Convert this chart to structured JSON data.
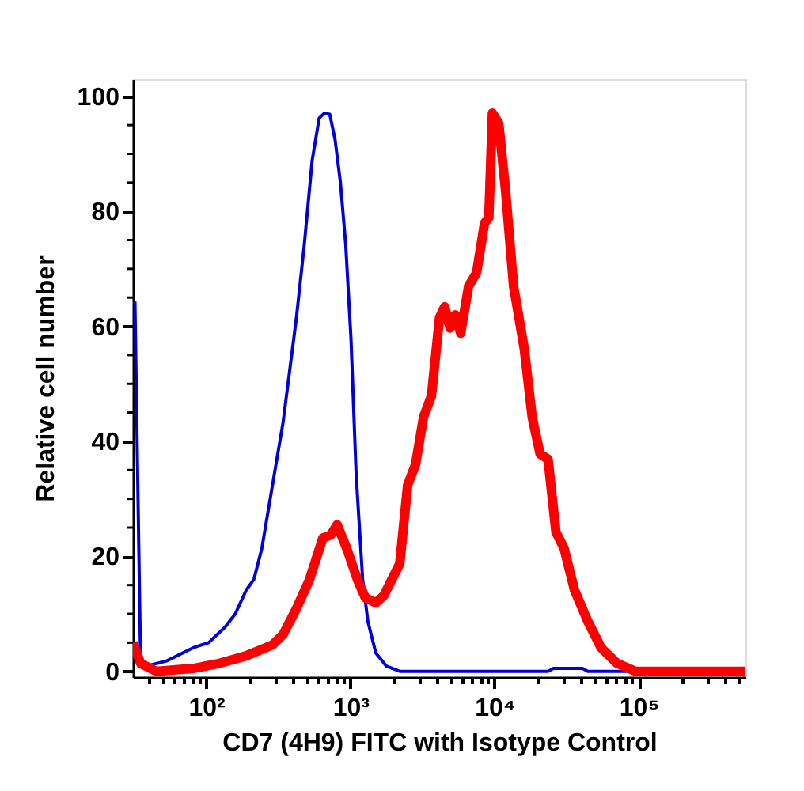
{
  "chart_data": {
    "type": "line",
    "xlabel": "CD7 (4H9) FITC with Isotype Control",
    "ylabel": "Relative cell number",
    "log": "x",
    "legend": false,
    "grid": false,
    "marker": "none",
    "line_style": "solid",
    "xlim": [
      31,
      550000
    ],
    "ylim": [
      -1,
      103
    ],
    "xticks": [
      {
        "value": 100,
        "label": "10²"
      },
      {
        "value": 1000,
        "label": "10³"
      },
      {
        "value": 10000,
        "label": "10⁴"
      },
      {
        "value": 100000,
        "label": "10⁵"
      },
      {
        "value": 40,
        "label": null
      },
      {
        "value": 50,
        "label": null
      },
      {
        "value": 60,
        "label": null
      },
      {
        "value": 70,
        "label": null
      },
      {
        "value": 80,
        "label": null
      },
      {
        "value": 90,
        "label": null
      },
      {
        "value": 200,
        "label": null
      },
      {
        "value": 300,
        "label": null
      },
      {
        "value": 400,
        "label": null
      },
      {
        "value": 500,
        "label": null
      },
      {
        "value": 600,
        "label": null
      },
      {
        "value": 700,
        "label": null
      },
      {
        "value": 800,
        "label": null
      },
      {
        "value": 900,
        "label": null
      },
      {
        "value": 2000,
        "label": null
      },
      {
        "value": 3000,
        "label": null
      },
      {
        "value": 4000,
        "label": null
      },
      {
        "value": 5000,
        "label": null
      },
      {
        "value": 6000,
        "label": null
      },
      {
        "value": 7000,
        "label": null
      },
      {
        "value": 8000,
        "label": null
      },
      {
        "value": 9000,
        "label": null
      },
      {
        "value": 20000,
        "label": null
      },
      {
        "value": 30000,
        "label": null
      },
      {
        "value": 40000,
        "label": null
      },
      {
        "value": 50000,
        "label": null
      },
      {
        "value": 60000,
        "label": null
      },
      {
        "value": 70000,
        "label": null
      },
      {
        "value": 80000,
        "label": null
      },
      {
        "value": 90000,
        "label": null
      },
      {
        "value": 200000,
        "label": null
      },
      {
        "value": 300000,
        "label": null
      },
      {
        "value": 400000,
        "label": null
      },
      {
        "value": 500000,
        "label": null
      }
    ],
    "yticks": [
      0,
      20,
      40,
      60,
      80,
      100,
      {
        "value": 5,
        "label": null
      },
      {
        "value": 10,
        "label": null
      },
      {
        "value": 15,
        "label": null
      },
      {
        "value": 25,
        "label": null
      },
      {
        "value": 30,
        "label": null
      },
      {
        "value": 35,
        "label": null
      },
      {
        "value": 45,
        "label": null
      },
      {
        "value": 50,
        "label": null
      },
      {
        "value": 55,
        "label": null
      },
      {
        "value": 65,
        "label": null
      },
      {
        "value": 70,
        "label": null
      },
      {
        "value": 75,
        "label": null
      },
      {
        "value": 85,
        "label": null
      },
      {
        "value": 90,
        "label": null
      },
      {
        "value": 95,
        "label": null
      }
    ],
    "series": [
      {
        "color": "#0000dd",
        "x": [
          32,
          35,
          38,
          53,
          81,
          104,
          135,
          159,
          189,
          214,
          243,
          288,
          341,
          422,
          479,
          543,
          607,
          661,
          719,
          782,
          851,
          927,
          1009,
          1096,
          1216,
          1321,
          1500,
          1778,
          2198,
          23440,
          25590,
          40740,
          44360,
          550000
        ],
        "values": [
          64.3,
          2.3,
          0.9,
          1.8,
          4.1,
          5.0,
          7.7,
          10.0,
          14.1,
          16.0,
          21.4,
          32.4,
          43.3,
          61.5,
          74.3,
          88.9,
          96.2,
          97.1,
          96.9,
          92.5,
          85.2,
          74.3,
          57.9,
          34.2,
          16.0,
          8.7,
          3.2,
          0.9,
          0,
          0,
          0.5,
          0.5,
          0,
          0
        ]
      },
      {
        "color": "#ff0000",
        "x": [
          31,
          35,
          45,
          81,
          124,
          189,
          288,
          341,
          422,
          521,
          644,
          731,
          809,
          942,
          1117,
          1268,
          1500,
          1706,
          2198,
          2495,
          2831,
          3214,
          3648,
          4150,
          4508,
          4909,
          5346,
          5821,
          6607,
          7499,
          8511,
          9120,
          9661,
          10690,
          11940,
          13550,
          16070,
          18240,
          20700,
          23500,
          26670,
          30340,
          35890,
          44360,
          54830,
          70630,
          95060,
          550000
        ],
        "values": [
          5.0,
          1.4,
          0,
          0.5,
          1.4,
          2.7,
          4.6,
          6.4,
          10.9,
          16.0,
          23.2,
          23.7,
          25.5,
          21.4,
          16.0,
          12.8,
          11.9,
          13.2,
          18.7,
          32.4,
          36.0,
          44.2,
          47.9,
          61.5,
          63.4,
          59.7,
          62.0,
          58.8,
          67.0,
          69.3,
          77.9,
          78.9,
          97.1,
          95.3,
          83.4,
          67.0,
          56.1,
          44.2,
          37.8,
          36.9,
          24.2,
          21.4,
          14.1,
          8.7,
          4.1,
          1.4,
          0,
          0
        ]
      }
    ]
  }
}
